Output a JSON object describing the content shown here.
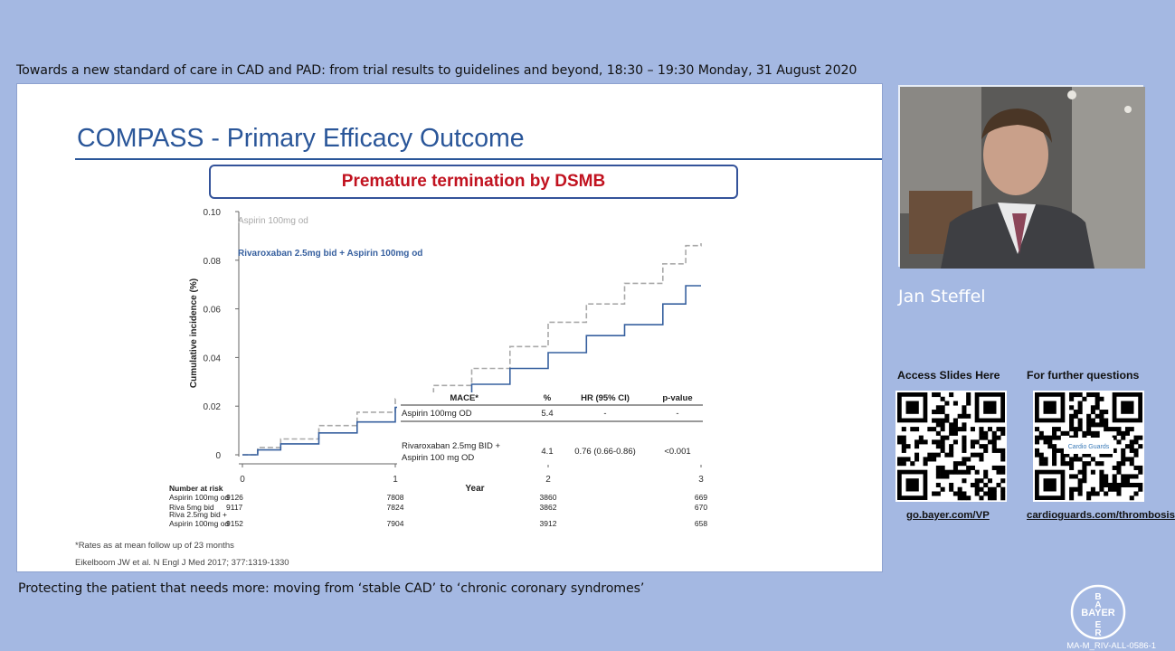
{
  "header": {
    "event_title": "Towards a new standard of care in CAD and PAD: from trial results to guidelines and beyond, 18:30 – 19:30 Monday, 31 August 2020"
  },
  "footer": {
    "session_title": "Protecting the patient that needs more: moving from ‘stable CAD’ to ‘chronic coronary syndromes’",
    "doc_code": "MA-M_RIV-ALL-0586-1"
  },
  "slide": {
    "title": "COMPASS - Primary Efficacy Outcome",
    "banner": "Premature termination by DSMB",
    "footnote": "*Rates as at mean follow up of 23 months",
    "reference": "Eikelboom JW et al. N Engl J Med 2017; 377:1319-1330"
  },
  "chart_data": {
    "type": "line",
    "xlabel": "Year",
    "ylabel": "Cumulative incidence (%)",
    "x_ticks": [
      "0",
      "1",
      "2",
      "3"
    ],
    "y_ticks": [
      "0.10",
      "0.08",
      "0.06",
      "0.04",
      "0.02",
      "0"
    ],
    "xlim": [
      0,
      3
    ],
    "ylim": [
      0,
      0.1
    ],
    "series": [
      {
        "name": "Aspirin 100mg od",
        "color": "#a9a9a9",
        "style": "dashed",
        "x": [
          0,
          0.1,
          0.25,
          0.5,
          0.75,
          1.0,
          1.25,
          1.5,
          1.75,
          2.0,
          2.25,
          2.5,
          2.75,
          2.9,
          3.0
        ],
        "y": [
          0,
          0.003,
          0.0065,
          0.012,
          0.0175,
          0.023,
          0.0285,
          0.0355,
          0.0445,
          0.0545,
          0.062,
          0.0705,
          0.0785,
          0.086,
          0.087
        ]
      },
      {
        "name": "Rivaroxaban 2.5mg bid  + Aspirin 100mg od",
        "color": "#37609f",
        "style": "solid",
        "x": [
          0,
          0.1,
          0.25,
          0.5,
          0.75,
          1.0,
          1.25,
          1.5,
          1.75,
          2.0,
          2.25,
          2.5,
          2.75,
          2.9,
          3.0
        ],
        "y": [
          0,
          0.002,
          0.0045,
          0.009,
          0.0135,
          0.0195,
          0.0245,
          0.029,
          0.0355,
          0.042,
          0.049,
          0.0535,
          0.062,
          0.0695,
          0.0695
        ]
      }
    ],
    "inset_table": {
      "headers": [
        "MACE*",
        "%",
        "HR (95% CI)",
        "p-value"
      ],
      "rows": [
        [
          "Aspirin 100mg OD",
          "5.4",
          "-",
          "-"
        ],
        [
          "Rivaroxaban 2.5mg BID + Aspirin 100 mg OD",
          "4.1",
          "0.76 (0.66-0.86)",
          "<0.001"
        ]
      ]
    },
    "risk_table": {
      "title": "Number at risk",
      "rows": [
        {
          "label": [
            "Aspirin 100mg od"
          ],
          "values": [
            "9126",
            "7808",
            "3860",
            "669"
          ]
        },
        {
          "label": [
            "Riva 5mg bid"
          ],
          "values": [
            "9117",
            "7824",
            "3862",
            "670"
          ]
        },
        {
          "label": [
            "Riva 2.5mg bid +",
            "Aspirin 100mg od"
          ],
          "values": [
            "9152",
            "7904",
            "3912",
            "658"
          ]
        }
      ]
    }
  },
  "speaker": {
    "name": "Jan Steffel"
  },
  "resources": [
    {
      "heading": "Access  Slides Here",
      "link": "go.bayer.com/VP",
      "qr_badge": ""
    },
    {
      "heading": "For further questions",
      "link": "cardioguards.com/thrombosis",
      "qr_badge": "Cardio Guards"
    }
  ],
  "brand": {
    "logo_text": "BAYER",
    "logo_colors": {
      "ring": "#ffffff"
    }
  }
}
